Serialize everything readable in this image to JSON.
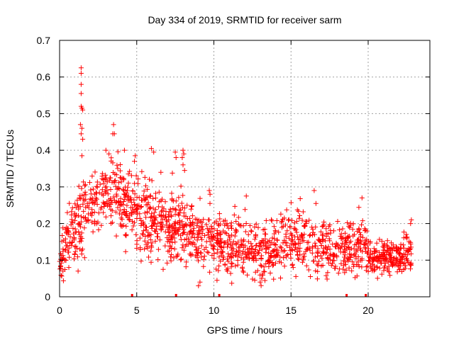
{
  "chart_data": {
    "type": "scatter",
    "title": "Day 334 of 2019, SRMTID for receiver sarm",
    "xlabel": "GPS time / hours",
    "ylabel": "SRMTID / TECUs",
    "xlim": [
      0,
      24
    ],
    "ylim": [
      0,
      0.7
    ],
    "xticks": [
      "0",
      "5",
      "10",
      "15",
      "20"
    ],
    "xtick_values": [
      0,
      5,
      10,
      15,
      20
    ],
    "yticks": [
      "0",
      "0.1",
      "0.2",
      "0.3",
      "0.4",
      "0.5",
      "0.6",
      "0.7"
    ],
    "ytick_values": [
      0,
      0.1,
      0.2,
      0.3,
      0.4,
      0.5,
      0.6,
      0.7
    ],
    "grid": true,
    "marker": "+",
    "colors": {
      "series": "#ff0000",
      "grid": "#a0a0a0",
      "axis": "#000000"
    },
    "series": [
      {
        "name": "SRMTID",
        "profile": {
          "hours": [
            0.0,
            0.5,
            1.0,
            1.3,
            1.5,
            1.8,
            2.0,
            2.5,
            3.0,
            3.5,
            4.0,
            4.5,
            5.0,
            6.0,
            7.0,
            7.5,
            8.0,
            9.0,
            10.0,
            11.0,
            12.0,
            13.0,
            14.0,
            14.5,
            15.0,
            16.0,
            17.0,
            18.0,
            19.0,
            19.8,
            20.0,
            21.0,
            22.0,
            22.8
          ],
          "typical_tecu": [
            0.1,
            0.14,
            0.18,
            0.2,
            0.22,
            0.24,
            0.25,
            0.26,
            0.29,
            0.27,
            0.26,
            0.24,
            0.23,
            0.21,
            0.19,
            0.2,
            0.19,
            0.17,
            0.15,
            0.13,
            0.14,
            0.12,
            0.13,
            0.15,
            0.16,
            0.15,
            0.14,
            0.13,
            0.14,
            0.15,
            0.11,
            0.11,
            0.11,
            0.12
          ],
          "spread_tecu": [
            0.03,
            0.05,
            0.06,
            0.07,
            0.08,
            0.06,
            0.05,
            0.05,
            0.06,
            0.07,
            0.06,
            0.06,
            0.06,
            0.06,
            0.06,
            0.06,
            0.06,
            0.05,
            0.05,
            0.05,
            0.05,
            0.05,
            0.05,
            0.05,
            0.05,
            0.05,
            0.05,
            0.04,
            0.05,
            0.05,
            0.03,
            0.03,
            0.03,
            0.04
          ],
          "n_points": 1600
        },
        "spikes": [
          {
            "x": 1.4,
            "y": 0.625
          },
          {
            "x": 1.4,
            "y": 0.61
          },
          {
            "x": 1.4,
            "y": 0.58
          },
          {
            "x": 1.4,
            "y": 0.555
          },
          {
            "x": 1.4,
            "y": 0.52
          },
          {
            "x": 1.45,
            "y": 0.515
          },
          {
            "x": 1.5,
            "y": 0.51
          },
          {
            "x": 1.35,
            "y": 0.47
          },
          {
            "x": 1.45,
            "y": 0.46
          },
          {
            "x": 1.4,
            "y": 0.445
          },
          {
            "x": 1.5,
            "y": 0.43
          },
          {
            "x": 1.45,
            "y": 0.385
          },
          {
            "x": 3.5,
            "y": 0.47
          },
          {
            "x": 3.45,
            "y": 0.445
          },
          {
            "x": 3.55,
            "y": 0.445
          },
          {
            "x": 3.0,
            "y": 0.4
          },
          {
            "x": 3.2,
            "y": 0.39
          },
          {
            "x": 4.2,
            "y": 0.4
          },
          {
            "x": 4.9,
            "y": 0.385
          },
          {
            "x": 4.85,
            "y": 0.37
          },
          {
            "x": 5.95,
            "y": 0.405
          },
          {
            "x": 6.1,
            "y": 0.395
          },
          {
            "x": 7.5,
            "y": 0.395
          },
          {
            "x": 7.55,
            "y": 0.38
          },
          {
            "x": 8.0,
            "y": 0.4
          },
          {
            "x": 8.05,
            "y": 0.39
          },
          {
            "x": 7.95,
            "y": 0.38
          },
          {
            "x": 8.0,
            "y": 0.36
          },
          {
            "x": 8.1,
            "y": 0.345
          },
          {
            "x": 9.7,
            "y": 0.29
          },
          {
            "x": 9.75,
            "y": 0.28
          },
          {
            "x": 12.1,
            "y": 0.275
          },
          {
            "x": 16.5,
            "y": 0.29
          },
          {
            "x": 19.6,
            "y": 0.27
          },
          {
            "x": 22.8,
            "y": 0.21
          },
          {
            "x": 22.75,
            "y": 0.2
          },
          {
            "x": 9.0,
            "y": 0.03
          },
          {
            "x": 9.1,
            "y": 0.04
          },
          {
            "x": 10.2,
            "y": 0.045
          },
          {
            "x": 13.0,
            "y": 0.04
          },
          {
            "x": 13.1,
            "y": 0.05
          },
          {
            "x": 0.5,
            "y": 0.23
          },
          {
            "x": 1.2,
            "y": 0.07
          },
          {
            "x": 0.6,
            "y": 0.08
          }
        ]
      }
    ],
    "gap_markers_x": [
      4.7,
      7.55,
      10.35,
      18.6,
      19.85
    ]
  }
}
